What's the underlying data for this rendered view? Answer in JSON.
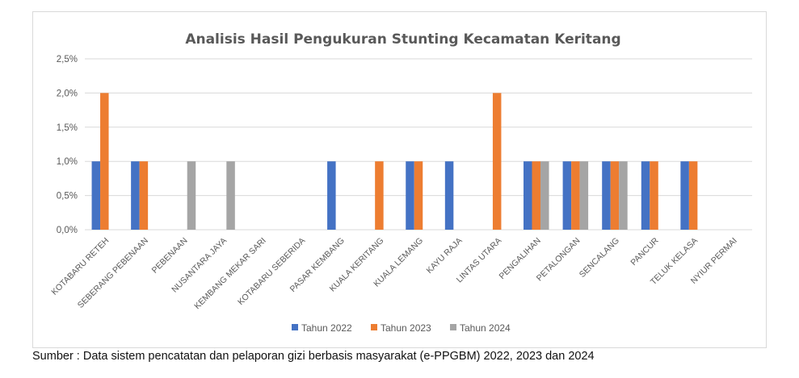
{
  "chart_data": {
    "type": "bar",
    "title": "Analisis Hasil Pengukuran Stunting Kecamatan Keritang",
    "categories": [
      "KOTABARU RETEH",
      "SEBERANG PEBENAAN",
      "PEBENAAN",
      "NUSANTARA JAYA",
      "KEMBANG MEKAR SARI",
      "KOTABARU SEBERIDA",
      "PASAR KEMBANG",
      "KUALA KERITANG",
      "KUALA LEMANG",
      "KAYU RAJA",
      "LINTAS UTARA",
      "PENGALIHAN",
      "PETALONGAN",
      "SENCALANG",
      "PANCUR",
      "TELUK KELASA",
      "NYIUR PERMAI"
    ],
    "series": [
      {
        "name": "Tahun 2022",
        "color": "#4472c4",
        "values": [
          1,
          1,
          0,
          0,
          0,
          0,
          1,
          0,
          1,
          1,
          0,
          1,
          1,
          1,
          1,
          1,
          0
        ]
      },
      {
        "name": "Tahun 2023",
        "color": "#ed7d31",
        "values": [
          2,
          1,
          0,
          0,
          0,
          0,
          0,
          1,
          1,
          0,
          2,
          1,
          1,
          1,
          1,
          1,
          0
        ]
      },
      {
        "name": "Tahun 2024",
        "color": "#a5a5a5",
        "values": [
          0,
          0,
          1,
          1,
          0,
          0,
          0,
          0,
          0,
          0,
          0,
          1,
          1,
          1,
          0,
          0,
          0
        ]
      }
    ],
    "yticks": [
      "0,0%",
      "0,5%",
      "1,0%",
      "1,5%",
      "2,0%",
      "2,5%"
    ],
    "ylim": [
      0,
      2.5
    ],
    "xlabel": "",
    "ylabel": "",
    "grid": true,
    "legend_position": "bottom"
  },
  "source_note": "Sumber : Data sistem pencatatan dan pelaporan gizi berbasis masyarakat (e-PPGBM) 2022, 2023 dan 2024"
}
